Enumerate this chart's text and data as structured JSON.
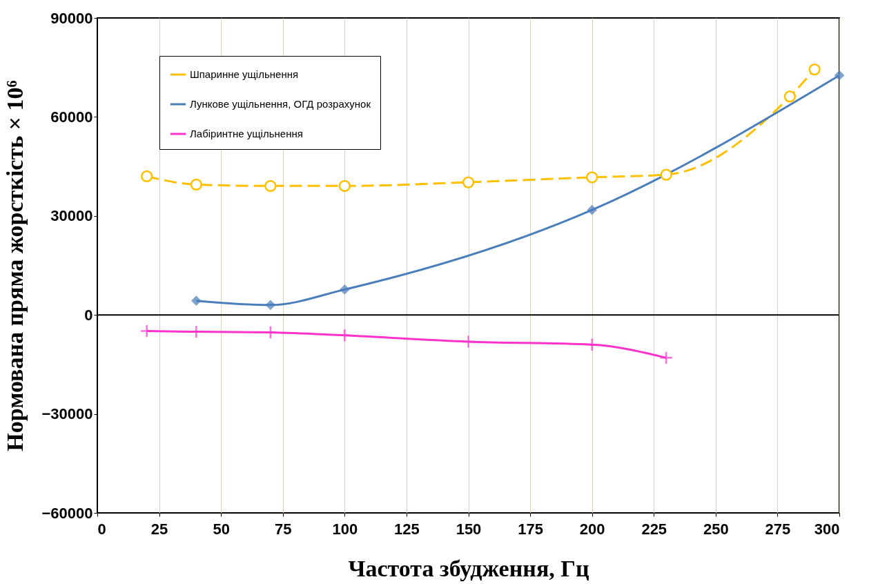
{
  "chart_data": {
    "type": "line",
    "xlabel": "Частота збудження, Гц",
    "ylabel": "Нормована пряма жорсткість × 10⁶",
    "xlim": [
      0,
      300
    ],
    "xticks": [
      0,
      25,
      50,
      75,
      100,
      125,
      150,
      175,
      200,
      225,
      250,
      275,
      300
    ],
    "ylim": [
      -60000,
      90000
    ],
    "yticks": [
      -60000,
      -30000,
      0,
      30000,
      60000,
      90000
    ],
    "grid": "x",
    "legend": "top left",
    "ref_lines": [
      {
        "axis": "y",
        "value": 0,
        "color": "#000000"
      }
    ],
    "series": [
      {
        "name": "Шпаринне ущільнення",
        "color": "#ffc000",
        "marker": "circle",
        "line_style": "dashed",
        "x": [
          20,
          40,
          70,
          100,
          150,
          200,
          230,
          280,
          290
        ],
        "values": [
          42000,
          39500,
          39100,
          39100,
          40200,
          41700,
          42500,
          66200,
          74400
        ]
      },
      {
        "name": "Лункове ущільнення, ОГД розрахунок",
        "color": "#4a7ebb",
        "marker": "diamond",
        "line_style": "solid",
        "x": [
          40,
          70,
          100,
          200,
          300
        ],
        "values": [
          4300,
          3000,
          7700,
          31800,
          72600
        ]
      },
      {
        "name": "Лабіринтне ущільнення",
        "color": "#ff33cc",
        "marker": "cross",
        "line_style": "solid",
        "x": [
          20,
          40,
          70,
          100,
          150,
          200,
          230
        ],
        "values": [
          -4900,
          -5100,
          -5300,
          -6200,
          -8100,
          -9000,
          -13000
        ]
      }
    ]
  }
}
